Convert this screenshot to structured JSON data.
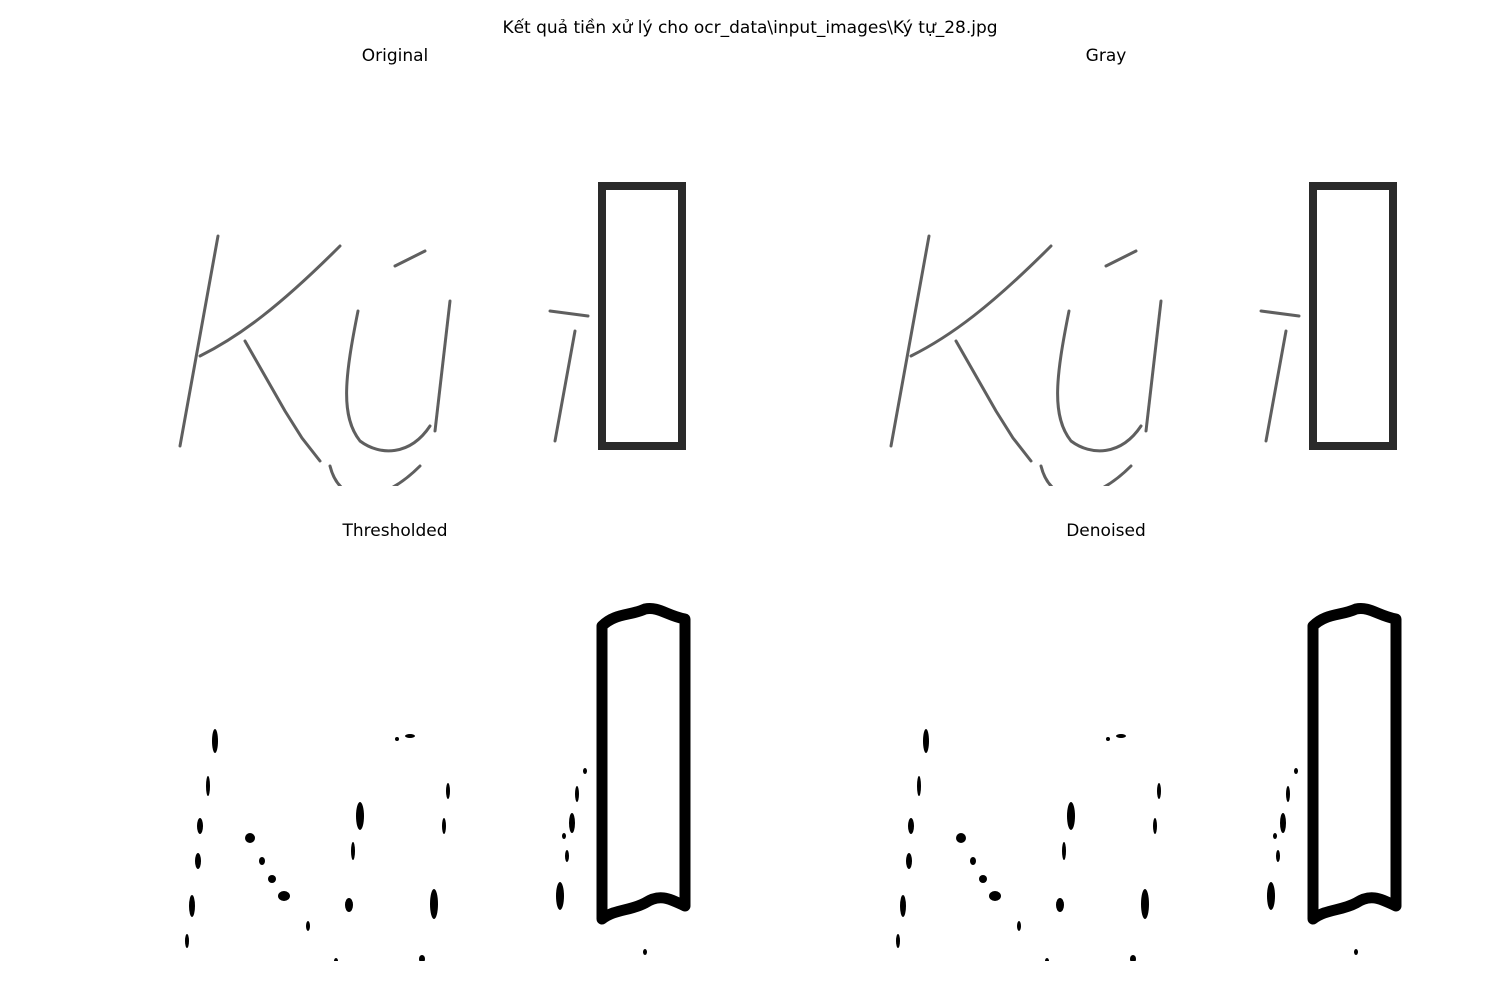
{
  "figure": {
    "suptitle": "Kết quả tiền xử lý cho ocr_data\\input_images\\Ký tự_28.jpg"
  },
  "panels": [
    {
      "title": "Original",
      "style": "soft"
    },
    {
      "title": "Gray",
      "style": "soft"
    },
    {
      "title": "Thresholded",
      "style": "binary"
    },
    {
      "title": "Denoised",
      "style": "binary"
    }
  ],
  "colors": {
    "ink": "#000000",
    "soft_ink": "#2a2a2a",
    "background": "#ffffff"
  }
}
